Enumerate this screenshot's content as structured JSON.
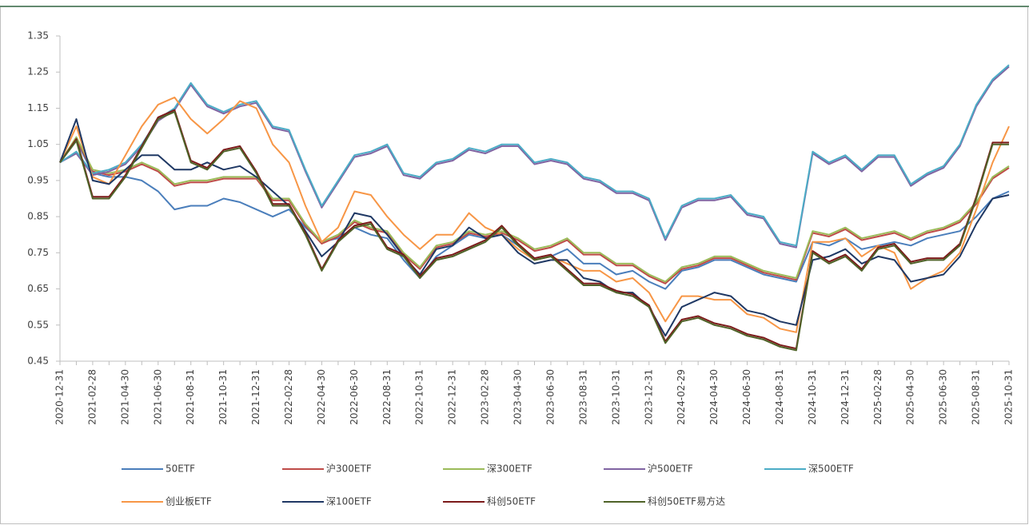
{
  "chart_data": {
    "type": "line",
    "categories": [
      "2020-12-31",
      null,
      "2021-02-28",
      null,
      "2021-04-30",
      null,
      "2021-06-30",
      null,
      "2021-08-31",
      null,
      "2021-10-31",
      null,
      "2021-12-31",
      null,
      "2022-02-28",
      null,
      "2022-04-30",
      null,
      "2022-06-30",
      null,
      "2022-08-31",
      null,
      "2022-10-31",
      null,
      "2022-12-31",
      null,
      "2023-02-28",
      null,
      "2023-04-30",
      null,
      "2023-06-30",
      null,
      "2023-08-31",
      null,
      "2023-10-31",
      null,
      "2023-12-31",
      null,
      "2024-02-29",
      null,
      "2024-04-30",
      null,
      "2024-06-30",
      null,
      "2024-08-31",
      null,
      "2024-10-31",
      null,
      "2024-12-31",
      null,
      "2025-02-28",
      null,
      "2025-04-30",
      null,
      "2025-06-30",
      null,
      "2025-08-31",
      null,
      "2025-10-31"
    ],
    "ylim": [
      0.45,
      1.35
    ],
    "yticks": [
      {
        "value": 0.45,
        "label": "0.45"
      },
      {
        "value": 0.55,
        "label": "0.55"
      },
      {
        "value": 0.65,
        "label": "0.65"
      },
      {
        "value": 0.75,
        "label": "0.75"
      },
      {
        "value": 0.85,
        "label": "0.85"
      },
      {
        "value": 0.95,
        "label": "0.95"
      },
      {
        "value": 1.05,
        "label": "1.05"
      },
      {
        "value": 1.15,
        "label": "1.15"
      },
      {
        "value": 1.25,
        "label": "1.25"
      },
      {
        "value": 1.35,
        "label": "1.35"
      }
    ],
    "series": [
      {
        "name": "50ETF",
        "color": "#4a7ebb",
        "values": [
          1.0,
          1.06,
          0.97,
          0.96,
          0.96,
          0.95,
          0.92,
          0.87,
          0.88,
          0.88,
          0.9,
          0.89,
          0.87,
          0.85,
          0.87,
          0.82,
          0.78,
          0.79,
          0.82,
          0.8,
          0.79,
          0.73,
          0.68,
          0.74,
          0.77,
          0.8,
          0.79,
          0.8,
          0.77,
          0.73,
          0.74,
          0.76,
          0.72,
          0.72,
          0.69,
          0.7,
          0.67,
          0.65,
          0.7,
          0.71,
          0.73,
          0.73,
          0.71,
          0.69,
          0.68,
          0.67,
          0.78,
          0.77,
          0.79,
          0.76,
          0.77,
          0.78,
          0.77,
          0.79,
          0.8,
          0.81,
          0.85,
          0.9,
          0.92
        ]
      },
      {
        "name": "沪300ETF",
        "color": "#be4b48",
        "values": [
          1.0,
          1.065,
          0.975,
          0.965,
          0.975,
          0.995,
          0.975,
          0.935,
          0.945,
          0.945,
          0.955,
          0.955,
          0.955,
          0.895,
          0.895,
          0.825,
          0.775,
          0.795,
          0.835,
          0.815,
          0.805,
          0.745,
          0.705,
          0.765,
          0.775,
          0.805,
          0.795,
          0.805,
          0.785,
          0.755,
          0.765,
          0.785,
          0.745,
          0.745,
          0.715,
          0.715,
          0.685,
          0.665,
          0.705,
          0.715,
          0.735,
          0.735,
          0.715,
          0.695,
          0.685,
          0.675,
          0.805,
          0.795,
          0.815,
          0.785,
          0.795,
          0.805,
          0.785,
          0.805,
          0.815,
          0.835,
          0.885,
          0.955,
          0.985
        ]
      },
      {
        "name": "深300ETF",
        "color": "#9bbb59",
        "values": [
          1.0,
          1.07,
          0.98,
          0.97,
          0.98,
          1.0,
          0.98,
          0.94,
          0.95,
          0.95,
          0.96,
          0.96,
          0.96,
          0.9,
          0.9,
          0.83,
          0.78,
          0.8,
          0.84,
          0.82,
          0.81,
          0.75,
          0.71,
          0.77,
          0.78,
          0.81,
          0.8,
          0.81,
          0.79,
          0.76,
          0.77,
          0.79,
          0.75,
          0.75,
          0.72,
          0.72,
          0.69,
          0.67,
          0.71,
          0.72,
          0.74,
          0.74,
          0.72,
          0.7,
          0.69,
          0.68,
          0.81,
          0.8,
          0.82,
          0.79,
          0.8,
          0.81,
          0.79,
          0.81,
          0.82,
          0.84,
          0.89,
          0.96,
          0.99
        ]
      },
      {
        "name": "沪500ETF",
        "color": "#8064a2",
        "values": [
          1.0,
          1.025,
          0.965,
          0.975,
          0.995,
          1.045,
          1.115,
          1.145,
          1.215,
          1.155,
          1.135,
          1.155,
          1.165,
          1.095,
          1.085,
          0.975,
          0.875,
          0.945,
          1.015,
          1.025,
          1.045,
          0.965,
          0.955,
          0.995,
          1.005,
          1.035,
          1.025,
          1.045,
          1.045,
          0.995,
          1.005,
          0.995,
          0.955,
          0.945,
          0.915,
          0.915,
          0.895,
          0.785,
          0.875,
          0.895,
          0.895,
          0.905,
          0.855,
          0.845,
          0.775,
          0.765,
          1.025,
          0.995,
          1.015,
          0.975,
          1.015,
          1.015,
          0.935,
          0.965,
          0.985,
          1.045,
          1.155,
          1.225,
          1.265
        ]
      },
      {
        "name": "深500ETF",
        "color": "#4bacc6",
        "values": [
          1.0,
          1.03,
          0.97,
          0.98,
          1.0,
          1.05,
          1.12,
          1.15,
          1.22,
          1.16,
          1.14,
          1.16,
          1.17,
          1.1,
          1.09,
          0.98,
          0.88,
          0.95,
          1.02,
          1.03,
          1.05,
          0.97,
          0.96,
          1.0,
          1.01,
          1.04,
          1.03,
          1.05,
          1.05,
          1.0,
          1.01,
          1.0,
          0.96,
          0.95,
          0.92,
          0.92,
          0.9,
          0.79,
          0.88,
          0.9,
          0.9,
          0.91,
          0.86,
          0.85,
          0.78,
          0.77,
          1.03,
          1.0,
          1.02,
          0.98,
          1.02,
          1.02,
          0.94,
          0.97,
          0.99,
          1.05,
          1.16,
          1.23,
          1.27
        ]
      },
      {
        "name": "创业板ETF",
        "color": "#f79646",
        "values": [
          1.0,
          1.1,
          0.96,
          0.94,
          1.02,
          1.1,
          1.16,
          1.18,
          1.12,
          1.08,
          1.12,
          1.17,
          1.15,
          1.05,
          1.0,
          0.88,
          0.78,
          0.82,
          0.92,
          0.91,
          0.85,
          0.8,
          0.76,
          0.8,
          0.8,
          0.86,
          0.82,
          0.8,
          0.76,
          0.73,
          0.74,
          0.72,
          0.7,
          0.7,
          0.67,
          0.68,
          0.64,
          0.56,
          0.63,
          0.63,
          0.62,
          0.62,
          0.58,
          0.57,
          0.54,
          0.53,
          0.78,
          0.78,
          0.79,
          0.74,
          0.77,
          0.75,
          0.65,
          0.68,
          0.7,
          0.75,
          0.87,
          1.0,
          1.1
        ]
      },
      {
        "name": "深100ETF",
        "color": "#1f3864",
        "values": [
          1.0,
          1.12,
          0.95,
          0.94,
          0.98,
          1.02,
          1.02,
          0.98,
          0.98,
          1.0,
          0.98,
          0.99,
          0.96,
          0.92,
          0.88,
          0.81,
          0.74,
          0.78,
          0.86,
          0.85,
          0.8,
          0.74,
          0.69,
          0.76,
          0.77,
          0.82,
          0.79,
          0.8,
          0.75,
          0.72,
          0.73,
          0.73,
          0.68,
          0.67,
          0.64,
          0.64,
          0.6,
          0.52,
          0.6,
          0.62,
          0.64,
          0.63,
          0.59,
          0.58,
          0.56,
          0.55,
          0.73,
          0.74,
          0.76,
          0.72,
          0.74,
          0.73,
          0.67,
          0.68,
          0.69,
          0.74,
          0.83,
          0.9,
          0.91
        ]
      },
      {
        "name": "科创50ETF",
        "color": "#7b1a1a",
        "values": [
          1.0,
          1.065,
          0.905,
          0.905,
          0.965,
          1.045,
          1.125,
          1.145,
          1.005,
          0.985,
          1.035,
          1.045,
          0.975,
          0.885,
          0.885,
          0.805,
          0.705,
          0.785,
          0.825,
          0.835,
          0.765,
          0.745,
          0.685,
          0.735,
          0.745,
          0.765,
          0.785,
          0.825,
          0.775,
          0.735,
          0.745,
          0.705,
          0.665,
          0.665,
          0.645,
          0.635,
          0.605,
          0.505,
          0.565,
          0.575,
          0.555,
          0.545,
          0.525,
          0.515,
          0.495,
          0.485,
          0.755,
          0.725,
          0.745,
          0.705,
          0.765,
          0.775,
          0.725,
          0.735,
          0.735,
          0.775,
          0.905,
          1.055,
          1.055
        ]
      },
      {
        "name": "科创50ETF易方达",
        "color": "#4f6228",
        "values": [
          1.0,
          1.06,
          0.9,
          0.9,
          0.96,
          1.04,
          1.12,
          1.14,
          1.0,
          0.98,
          1.03,
          1.04,
          0.97,
          0.88,
          0.88,
          0.8,
          0.7,
          0.78,
          0.82,
          0.83,
          0.76,
          0.74,
          0.68,
          0.73,
          0.74,
          0.76,
          0.78,
          0.82,
          0.77,
          0.73,
          0.74,
          0.7,
          0.66,
          0.66,
          0.64,
          0.63,
          0.6,
          0.5,
          0.56,
          0.57,
          0.55,
          0.54,
          0.52,
          0.51,
          0.49,
          0.48,
          0.75,
          0.72,
          0.74,
          0.7,
          0.76,
          0.77,
          0.72,
          0.73,
          0.73,
          0.77,
          0.9,
          1.05,
          1.05
        ]
      }
    ]
  }
}
